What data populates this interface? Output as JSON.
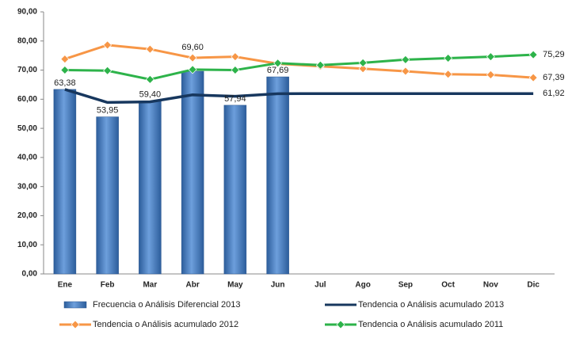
{
  "chart_data": {
    "type": "combo",
    "categories": [
      "Ene",
      "Feb",
      "Mar",
      "Abr",
      "May",
      "Jun",
      "Jul",
      "Ago",
      "Sep",
      "Oct",
      "Nov",
      "Dic"
    ],
    "ylim": [
      0,
      90
    ],
    "yticks": [
      {
        "value": 0,
        "label": "0,00"
      },
      {
        "value": 10,
        "label": "10,00"
      },
      {
        "value": 20,
        "label": "20,00"
      },
      {
        "value": 30,
        "label": "30,00"
      },
      {
        "value": 40,
        "label": "40,00"
      },
      {
        "value": 50,
        "label": "50,00"
      },
      {
        "value": 60,
        "label": "60,00"
      },
      {
        "value": 70,
        "label": "70,00"
      },
      {
        "value": 80,
        "label": "80,00"
      },
      {
        "value": 90,
        "label": "90,00"
      }
    ],
    "grid": false,
    "series": [
      {
        "name": "Frecuencia o Análisis Diferencial 2013",
        "type": "bar",
        "color": "#4f81bd",
        "values": [
          63.38,
          53.95,
          59.4,
          69.6,
          57.94,
          67.69,
          null,
          null,
          null,
          null,
          null,
          null
        ],
        "value_labels": [
          "63,38",
          "53,95",
          "59,40",
          "69,60",
          "57,94",
          "67,69",
          null,
          null,
          null,
          null,
          null,
          null
        ]
      },
      {
        "name": "Tendencia o Análisis acumulado 2013",
        "type": "line",
        "marker": false,
        "color": "#17375e",
        "values": [
          63.38,
          58.9,
          59.1,
          61.5,
          61.0,
          61.9,
          61.92,
          61.92,
          61.92,
          61.92,
          61.92,
          61.92
        ],
        "value_labels": [
          null,
          null,
          null,
          null,
          null,
          null,
          null,
          null,
          null,
          null,
          null,
          "61,92"
        ]
      },
      {
        "name": "Tendencia o Análisis acumulado 2012",
        "type": "line",
        "marker": true,
        "color": "#f79646",
        "values": [
          73.8,
          78.6,
          77.2,
          74.2,
          74.6,
          72.2,
          71.3,
          70.5,
          69.6,
          68.6,
          68.4,
          67.39
        ],
        "value_labels": [
          null,
          null,
          null,
          null,
          null,
          null,
          null,
          null,
          null,
          null,
          null,
          "67,39"
        ]
      },
      {
        "name": "Tendencia o Análisis acumulado 2011",
        "type": "line",
        "marker": true,
        "color": "#2db34a",
        "values": [
          70.0,
          69.8,
          66.8,
          70.2,
          70.0,
          72.4,
          71.7,
          72.5,
          73.6,
          74.1,
          74.6,
          75.29
        ],
        "value_labels": [
          null,
          null,
          null,
          null,
          null,
          null,
          null,
          null,
          null,
          null,
          null,
          "75,29"
        ]
      }
    ]
  }
}
